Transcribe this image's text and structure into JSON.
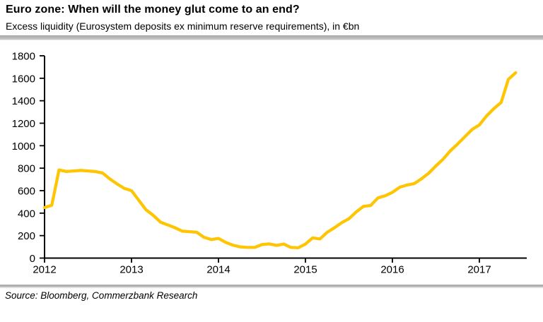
{
  "header": {
    "title": "Euro zone: When will the money glut come to an end?",
    "subtitle": "Excess liquidity (Eurosystem deposits ex minimum reserve requirements), in €bn"
  },
  "source": "Source: Bloomberg, Commerzbank Research",
  "colors": {
    "line": "#FDC504",
    "axis": "#000000",
    "separator": "#aeaeae",
    "background": "#ffffff"
  },
  "chart_data": {
    "type": "line",
    "title": "Euro zone: When will the money glut come to an end?",
    "subtitle": "Excess liquidity (Eurosystem deposits ex minimum reserve requirements), in €bn",
    "unit": "€bn",
    "xlabel": "",
    "ylabel": "",
    "grid": false,
    "legend": "none",
    "x_start_year": 2012,
    "x_interval": "monthly",
    "x_tick_labels": [
      "2012",
      "2013",
      "2014",
      "2015",
      "2016",
      "2017"
    ],
    "ylim": [
      0,
      1800
    ],
    "ytick_step": 200,
    "series": [
      {
        "name": "Excess liquidity",
        "values": [
          450,
          470,
          785,
          770,
          775,
          780,
          775,
          770,
          757,
          705,
          660,
          620,
          600,
          515,
          430,
          380,
          320,
          295,
          270,
          240,
          235,
          230,
          185,
          165,
          175,
          140,
          115,
          100,
          95,
          95,
          120,
          126,
          113,
          125,
          95,
          92,
          125,
          180,
          170,
          230,
          270,
          315,
          350,
          410,
          460,
          468,
          535,
          555,
          585,
          630,
          650,
          662,
          705,
          755,
          820,
          880,
          955,
          1015,
          1080,
          1145,
          1185,
          1265,
          1330,
          1385,
          1590,
          1650
        ]
      }
    ]
  }
}
